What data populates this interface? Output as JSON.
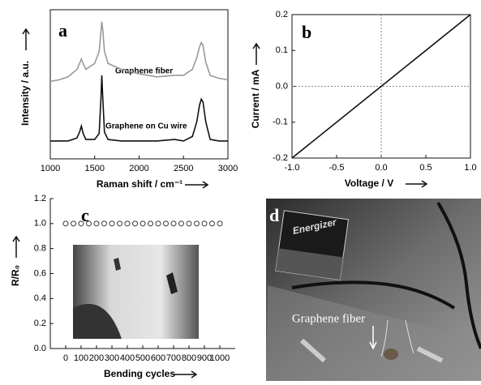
{
  "chart_data": [
    {
      "type": "line",
      "label": "a",
      "xlabel": "Raman shift / cm⁻¹",
      "ylabel": "Intensity / a.u.",
      "x": [
        1000,
        1100,
        1200,
        1300,
        1330,
        1350,
        1370,
        1400,
        1500,
        1550,
        1570,
        1580,
        1590,
        1610,
        1650,
        1800,
        2000,
        2200,
        2400,
        2500,
        2600,
        2650,
        2680,
        2700,
        2720,
        2750,
        2800,
        2900,
        3000
      ],
      "series": [
        {
          "name": "Graphene fiber",
          "color": "#999999",
          "values": [
            0.52,
            0.53,
            0.55,
            0.6,
            0.64,
            0.67,
            0.64,
            0.6,
            0.64,
            0.72,
            0.85,
            0.92,
            0.87,
            0.72,
            0.64,
            0.6,
            0.57,
            0.55,
            0.56,
            0.56,
            0.6,
            0.68,
            0.75,
            0.78,
            0.76,
            0.65,
            0.56,
            0.54,
            0.53
          ]
        },
        {
          "name": "Graphene on Cu wire",
          "color": "#111111",
          "values": [
            0.12,
            0.12,
            0.12,
            0.14,
            0.18,
            0.22,
            0.17,
            0.13,
            0.13,
            0.17,
            0.4,
            0.56,
            0.42,
            0.18,
            0.13,
            0.12,
            0.12,
            0.12,
            0.13,
            0.12,
            0.15,
            0.25,
            0.36,
            0.4,
            0.38,
            0.25,
            0.13,
            0.12,
            0.12
          ]
        }
      ],
      "xlim": [
        1000,
        3000
      ],
      "xticks": [
        1000,
        1500,
        2000,
        2500,
        3000
      ],
      "ylim": [
        0,
        1
      ]
    },
    {
      "type": "line",
      "label": "b",
      "xlabel": "Voltage / V",
      "ylabel": "Current / mA",
      "x": [
        -1,
        1
      ],
      "series": [
        {
          "color": "#111111",
          "values": [
            -0.2,
            0.2
          ]
        }
      ],
      "xlim": [
        -1,
        1
      ],
      "xticks": [
        {
          "value": -1,
          "label": "-1.0"
        },
        -0.5,
        {
          "value": 0,
          "label": "0.0"
        },
        0.5,
        {
          "value": 1,
          "label": "1.0"
        }
      ],
      "ylim": [
        -0.2,
        0.2
      ],
      "yticks": [
        -0.2,
        -0.1,
        {
          "value": 0,
          "label": "0.0"
        },
        0.1,
        0.2
      ]
    },
    {
      "type": "scatter",
      "label": "c",
      "xlabel": "Bending cycles",
      "ylabel": "R/R₀",
      "x": [
        0,
        50,
        100,
        150,
        200,
        250,
        300,
        350,
        400,
        450,
        500,
        550,
        600,
        650,
        700,
        750,
        800,
        850,
        900,
        950,
        1000
      ],
      "values": [
        1,
        1,
        1,
        1,
        1,
        1,
        1,
        1,
        1,
        1,
        1,
        1,
        1,
        1,
        1,
        1,
        1,
        1,
        1,
        1,
        1
      ],
      "color": "#333333",
      "xlim": [
        -100,
        1100
      ],
      "xticks": [
        0,
        100,
        200,
        300,
        400,
        500,
        600,
        700,
        800,
        900,
        1000
      ],
      "ylim": [
        0,
        1.2
      ],
      "yticks": [
        {
          "value": 0,
          "label": "0.0"
        },
        0.2,
        0.4,
        0.6,
        0.8,
        {
          "value": 1,
          "label": "1.0"
        },
        1.2
      ]
    }
  ],
  "photo": {
    "label": "d",
    "battery_brand": "Energizer",
    "annotation": "Graphene fiber"
  }
}
